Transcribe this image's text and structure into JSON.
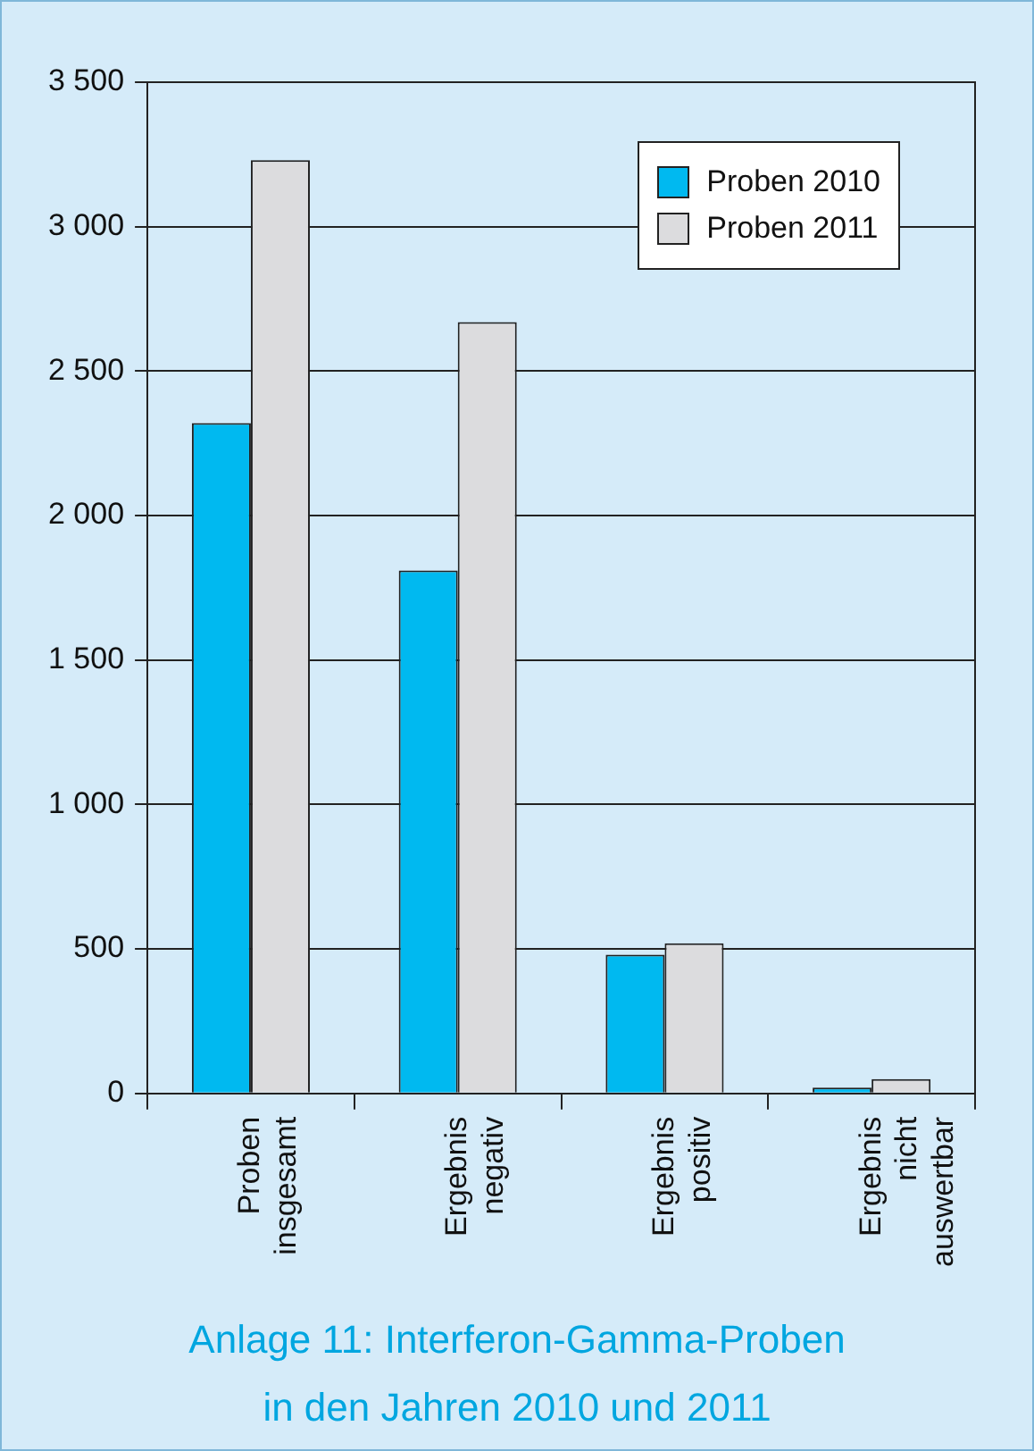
{
  "chart_data": {
    "type": "bar",
    "title": "Anlage 11: Interferon-Gamma-Proben\nin den Jahren 2010 und 2011",
    "categories": [
      "Proben insgesamt",
      "Ergebnis negativ",
      "Ergebnis positiv",
      "Ergebnis nicht auswertbar"
    ],
    "series": [
      {
        "name": "Proben 2010",
        "color": "#00b9f0",
        "values": [
          2320,
          1810,
          480,
          20
        ]
      },
      {
        "name": "Proben 2011",
        "color": "#dcdcde",
        "values": [
          3230,
          2670,
          520,
          50
        ]
      }
    ],
    "ylim": [
      0,
      3500
    ],
    "yticks": [
      {
        "value": 0,
        "label": "0"
      },
      {
        "value": 500,
        "label": "500"
      },
      {
        "value": 1000,
        "label": "1 000"
      },
      {
        "value": 1500,
        "label": "1 500"
      },
      {
        "value": 2000,
        "label": "2 000"
      },
      {
        "value": 2500,
        "label": "2 500"
      },
      {
        "value": 3000,
        "label": "3 000"
      },
      {
        "value": 3500,
        "label": "3 500"
      }
    ],
    "grid": "y",
    "legend": "top right"
  }
}
